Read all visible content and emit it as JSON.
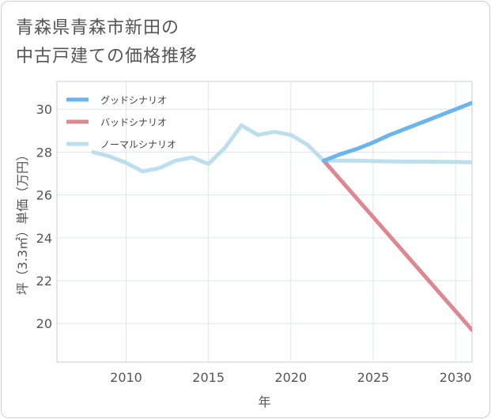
{
  "title_lines": [
    "青森県青森市新田の",
    "中古戸建ての価格推移"
  ],
  "chart_data": {
    "type": "line",
    "title": "青森県青森市新田の中古戸建ての価格推移",
    "xlabel": "年",
    "ylabel": "坪（3.3㎡）単価（万円）",
    "xlim": [
      2005.8,
      2031
    ],
    "ylim": [
      18.2,
      31.3
    ],
    "xticks": [
      2010,
      2015,
      2020,
      2025,
      2030
    ],
    "yticks": [
      20,
      22,
      24,
      26,
      28,
      30
    ],
    "grid": true,
    "legend_position": "top-left",
    "series": [
      {
        "name": "グッドシナリオ",
        "color": "#6ab6ec",
        "x": [
          2022,
          2023,
          2024,
          2025,
          2026,
          2027,
          2028,
          2029,
          2030,
          2031
        ],
        "y": [
          27.6,
          27.9,
          28.15,
          28.45,
          28.8,
          29.1,
          29.4,
          29.7,
          30.0,
          30.3
        ]
      },
      {
        "name": "バッドシナリオ",
        "color": "#dd8790",
        "x": [
          2022,
          2031
        ],
        "y": [
          27.6,
          19.7
        ]
      },
      {
        "name": "ノーマルシナリオ",
        "color": "#bcdfee",
        "x": [
          2008,
          2009,
          2010,
          2011,
          2012,
          2013,
          2014,
          2015,
          2016,
          2017,
          2018,
          2019,
          2020,
          2021,
          2022,
          2023,
          2024,
          2025,
          2026,
          2027,
          2028,
          2029,
          2030,
          2031
        ],
        "y": [
          28.0,
          27.8,
          27.5,
          27.1,
          27.25,
          27.6,
          27.75,
          27.45,
          28.2,
          29.25,
          28.8,
          28.95,
          28.8,
          28.35,
          27.6,
          27.6,
          27.6,
          27.58,
          27.57,
          27.56,
          27.56,
          27.55,
          27.54,
          27.52
        ]
      }
    ]
  }
}
